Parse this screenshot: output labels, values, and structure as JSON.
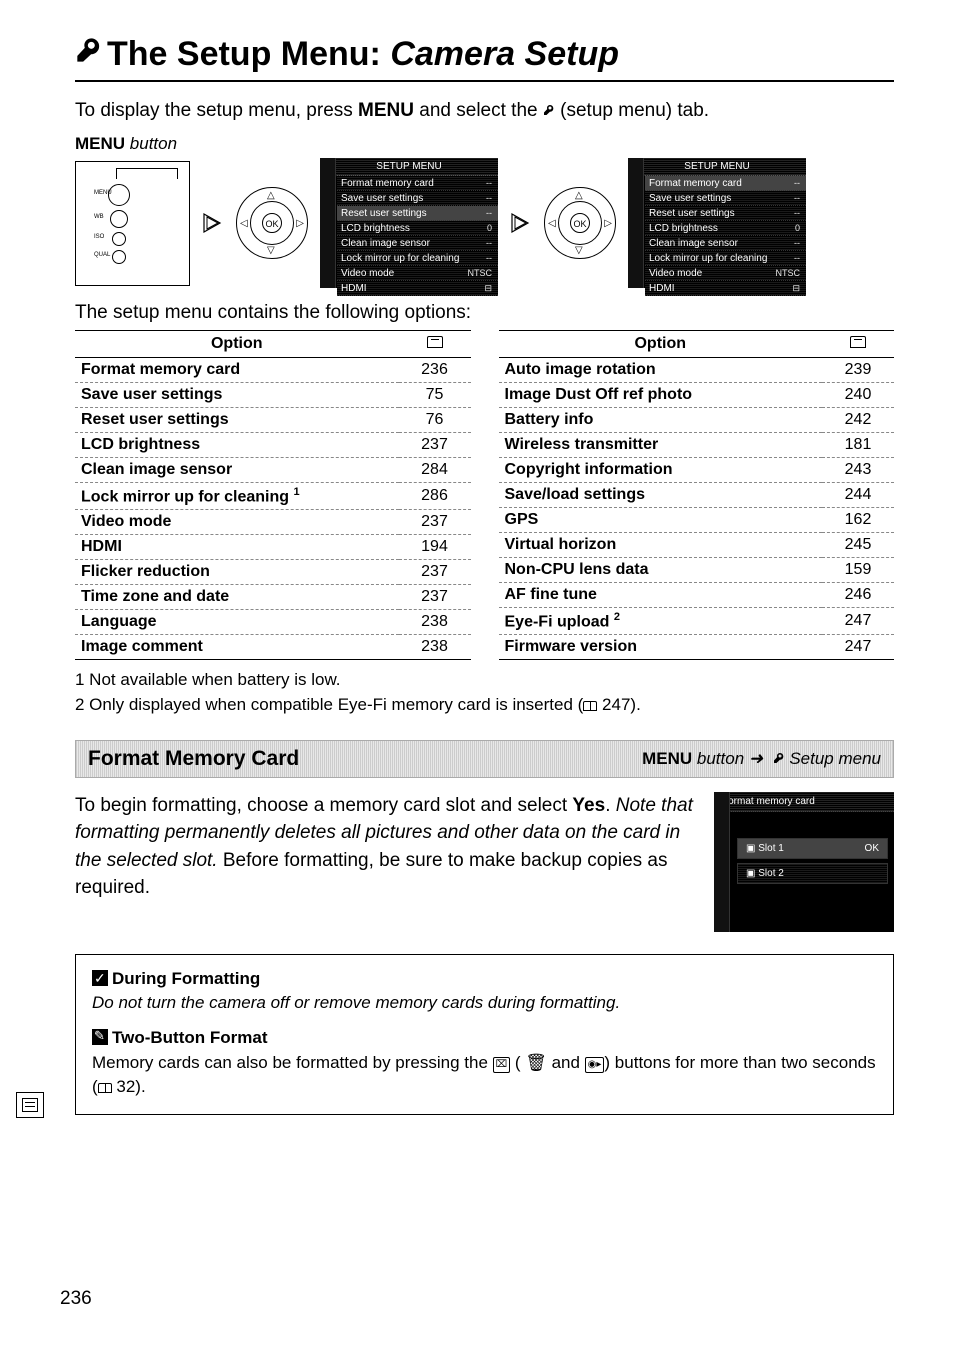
{
  "title_prefix": "The Setup Menu:",
  "title_italic": "Camera Setup",
  "intro_pre": "To display the setup menu, press ",
  "intro_menu": "MENU",
  "intro_mid": " and select the ",
  "intro_post": " (setup menu) tab.",
  "menu_button_label": "MENU",
  "menu_button_label_i": " button",
  "ok_label": "OK",
  "setup_menu_header": "SETUP MENU",
  "menu_rows": [
    {
      "label": "Format memory card",
      "val": "--"
    },
    {
      "label": "Save user settings",
      "val": "--"
    },
    {
      "label": "Reset user settings",
      "val": "--"
    },
    {
      "label": "LCD brightness",
      "val": "0"
    },
    {
      "label": "Clean image sensor",
      "val": "--"
    },
    {
      "label": "Lock mirror up for cleaning",
      "val": "--"
    },
    {
      "label": "Video mode",
      "val": "NTSC"
    },
    {
      "label": "HDMI",
      "val": "⊟"
    }
  ],
  "subhead": "The setup menu contains the following options:",
  "table_left": {
    "header": "Option",
    "rows": [
      {
        "o": "Format memory card",
        "p": "236"
      },
      {
        "o": "Save user settings",
        "p": "75"
      },
      {
        "o": "Reset user settings",
        "p": "76"
      },
      {
        "o": "LCD brightness",
        "p": "237"
      },
      {
        "o": "Clean image sensor",
        "p": "284"
      },
      {
        "o": "Lock mirror up for cleaning ",
        "sup": "1",
        "p": "286"
      },
      {
        "o": "Video mode",
        "p": "237"
      },
      {
        "o": "HDMI",
        "p": "194"
      },
      {
        "o": "Flicker reduction",
        "p": "237"
      },
      {
        "o": "Time zone and date",
        "p": "237"
      },
      {
        "o": "Language",
        "p": "238"
      },
      {
        "o": "Image comment",
        "p": "238"
      }
    ]
  },
  "table_right": {
    "header": "Option",
    "rows": [
      {
        "o": "Auto image rotation",
        "p": "239"
      },
      {
        "o": "Image Dust Off ref photo",
        "p": "240"
      },
      {
        "o": "Battery info",
        "p": "242"
      },
      {
        "o": "Wireless transmitter",
        "p": "181"
      },
      {
        "o": "Copyright information",
        "p": "243"
      },
      {
        "o": "Save/load settings",
        "p": "244"
      },
      {
        "o": "GPS",
        "p": "162"
      },
      {
        "o": "Virtual horizon",
        "p": "245"
      },
      {
        "o": "Non-CPU lens data",
        "p": "159"
      },
      {
        "o": "AF fine tune",
        "p": "246"
      },
      {
        "o": "Eye-Fi upload ",
        "sup": "2",
        "p": "247"
      },
      {
        "o": "Firmware version",
        "p": "247"
      }
    ]
  },
  "note1": "1  Not available when battery is low.",
  "note2_pre": "2  Only displayed when compatible Eye-Fi memory card is inserted (",
  "note2_page": " 247).",
  "section_title": "Format Memory Card",
  "section_path_menu": "MENU",
  "section_path_button": " button  ",
  "section_path_arrow": "➜",
  "section_path_setup": " Setup menu",
  "fmt_p1_a": "To begin formatting, choose a memory card slot and select ",
  "fmt_p1_yes": "Yes",
  "fmt_p1_b": ". ",
  "fmt_warn": "Note that formatting permanently deletes all pictures and other data on the card in the selected slot.",
  "fmt_p1_c": "  Before formatting, be sure to make backup copies as required.",
  "fmt_screen_title": "Format memory card",
  "fmt_slot1": "Slot 1",
  "fmt_slot1_ok": "OK",
  "fmt_slot2": "Slot 2",
  "callout1_title": "During Formatting",
  "callout1_body": "Do not turn the camera off or remove memory cards during formatting.",
  "callout2_title": "Two-Button Format",
  "callout2_a": "Memory cards can also be formatted by pressing the ",
  "callout2_b": " ( 🗑 and ",
  "callout2_c": ") buttons for more than two seconds (",
  "callout2_page": " 32).",
  "page_number": "236"
}
